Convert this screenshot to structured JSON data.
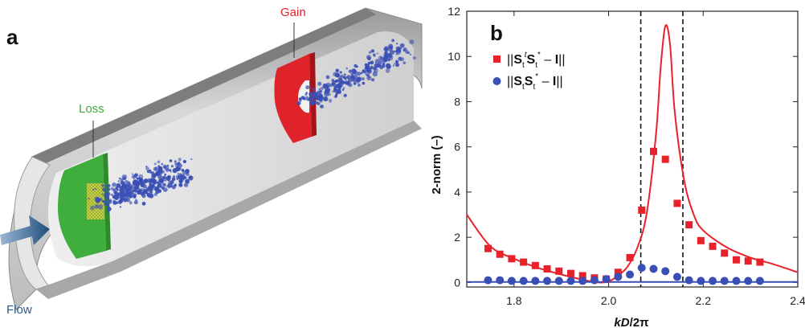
{
  "panel_a": {
    "letter": "a",
    "labels": {
      "gain": "Gain",
      "loss": "Loss",
      "flow": "Flow"
    },
    "colors": {
      "gain": "#e0222b",
      "loss": "#3fae3c",
      "flow": "#2a5a8a",
      "particles": "#3a4fb5",
      "pipe": "#c8c8c8"
    }
  },
  "panel_b": {
    "letter": "b",
    "legend": [
      "||S_t^t S_t^* − I||",
      "||S_t S_t^* − I||"
    ]
  },
  "chart_data": {
    "type": "scatter",
    "xlabel": "kD/2π",
    "ylabel": "2-norm (–)",
    "xlim": [
      1.7,
      2.4
    ],
    "ylim": [
      -0.2,
      12
    ],
    "xticks": [
      "1.8",
      "2.0",
      "2.2",
      "2.4"
    ],
    "yticks": [
      "0",
      "2",
      "4",
      "6",
      "8",
      "10",
      "12"
    ],
    "vlines": [
      2.068,
      2.157
    ],
    "series": [
      {
        "name": "||S_t^t S_t^* − I||",
        "marker": "square",
        "color": "#e8222b",
        "x": [
          1.745,
          1.77,
          1.795,
          1.82,
          1.845,
          1.87,
          1.895,
          1.92,
          1.945,
          1.97,
          1.995,
          2.02,
          2.045,
          2.07,
          2.095,
          2.12,
          2.145,
          2.17,
          2.195,
          2.22,
          2.245,
          2.27,
          2.295,
          2.32
        ],
        "y": [
          1.5,
          1.25,
          1.05,
          0.9,
          0.75,
          0.6,
          0.5,
          0.4,
          0.3,
          0.2,
          0.15,
          0.45,
          1.1,
          3.2,
          5.8,
          5.45,
          3.5,
          2.55,
          1.85,
          1.6,
          1.3,
          1.0,
          0.95,
          0.9
        ]
      },
      {
        "name": "||S_t S_t^* − I||",
        "marker": "circle",
        "color": "#3a4fb5",
        "x": [
          1.745,
          1.77,
          1.795,
          1.82,
          1.845,
          1.87,
          1.895,
          1.92,
          1.945,
          1.97,
          1.995,
          2.02,
          2.045,
          2.07,
          2.095,
          2.12,
          2.145,
          2.17,
          2.195,
          2.22,
          2.245,
          2.27,
          2.295,
          2.32
        ],
        "y": [
          0.1,
          0.1,
          0.07,
          0.07,
          0.07,
          0.07,
          0.07,
          0.07,
          0.07,
          0.1,
          0.15,
          0.25,
          0.35,
          0.65,
          0.6,
          0.5,
          0.25,
          0.1,
          0.07,
          0.07,
          0.07,
          0.07,
          0.07,
          0.07
        ]
      },
      {
        "name": "model-red",
        "kind": "line",
        "color": "#e8222b",
        "x": [
          1.7,
          1.75,
          1.8,
          1.85,
          1.9,
          1.95,
          1.98,
          2.0,
          2.02,
          2.04,
          2.06,
          2.08,
          2.1,
          2.11,
          2.12,
          2.13,
          2.14,
          2.16,
          2.18,
          2.2,
          2.25,
          2.3,
          2.35,
          2.4
        ],
        "y": [
          3.0,
          1.6,
          1.05,
          0.65,
          0.35,
          0.1,
          0.0,
          0.05,
          0.3,
          0.7,
          1.5,
          3.0,
          6.5,
          9.5,
          11.35,
          10.5,
          7.5,
          4.5,
          3.0,
          2.3,
          1.55,
          1.1,
          0.8,
          0.45
        ]
      },
      {
        "name": "model-blue",
        "kind": "line",
        "color": "#3a4fb5",
        "x": [
          1.7,
          2.4
        ],
        "y": [
          0.02,
          0.02
        ]
      }
    ]
  }
}
